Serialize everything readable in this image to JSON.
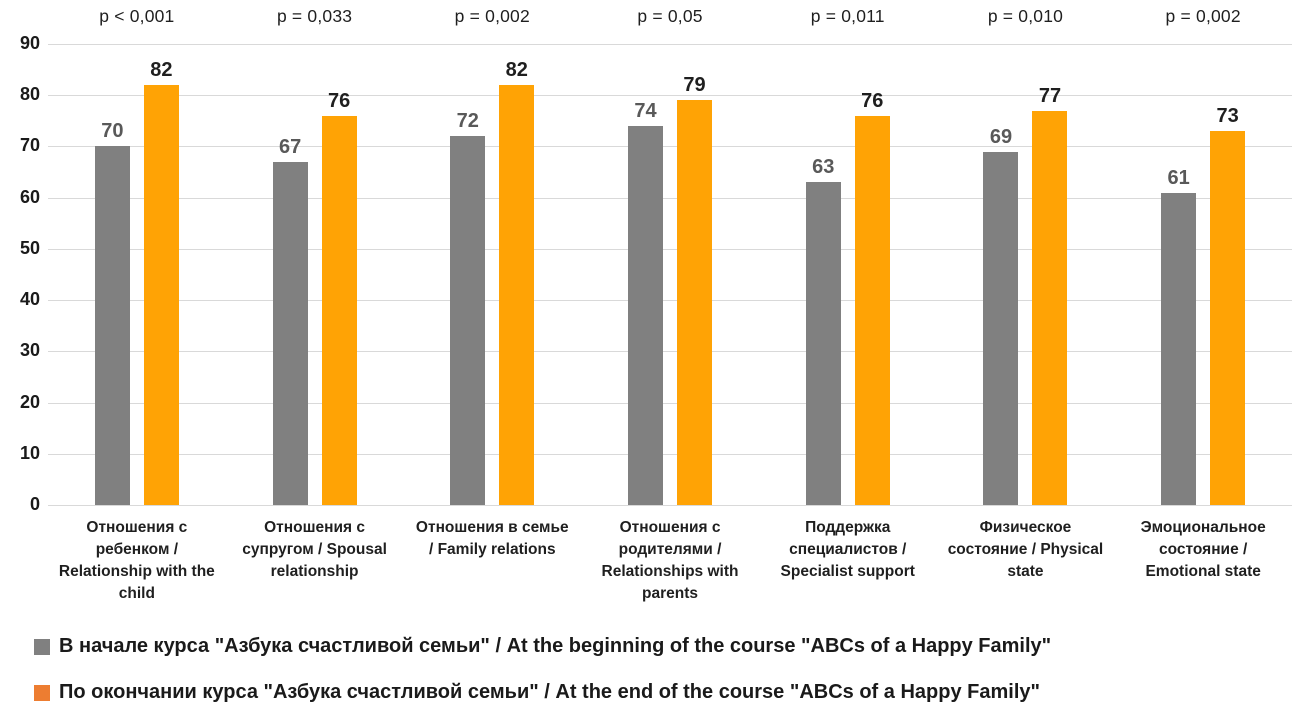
{
  "colors": {
    "bar_before": "#808080",
    "bar_after": "#ffa305",
    "legend_before": "#808080",
    "legend_after": "#ed7d31",
    "gridline": "#d9d9d9",
    "value_label_before": "#595959",
    "value_label_after": "#1f1f1f"
  },
  "chart_data": {
    "type": "bar",
    "title": "",
    "xlabel": "",
    "ylabel": "",
    "y_axis": {
      "min": 0,
      "max": 90,
      "step": 10,
      "ticks": [
        0,
        10,
        20,
        30,
        40,
        50,
        60,
        70,
        80,
        90
      ]
    },
    "grid": true,
    "legend_position": "bottom",
    "categories": [
      "Отношения с\nребенком /\nRelationship with the\nchild",
      "Отношения с\nсупругом / Spousal\nrelationship",
      "Отношения в семье\n/ Family relations",
      "Отношения с\nродителями /\nRelationships with\nparents",
      "Поддержка\nспециалистов /\nSpecialist support",
      "Физическое\nсостояние / Physical\nstate",
      "Эмоциональное\nсостояние /\nEmotional state"
    ],
    "p_values": [
      "p < 0,001",
      "p = 0,033",
      "p = 0,002",
      "p = 0,05",
      "p = 0,011",
      "p = 0,010",
      "p = 0,002"
    ],
    "series": [
      {
        "name": "В начале курса \"Азбука счастливой семьи\" / At the beginning of the course \"ABCs of a Happy Family\"",
        "values": [
          70,
          67,
          72,
          74,
          63,
          69,
          61
        ]
      },
      {
        "name": "По окончании курса \"Азбука счастливой семьи\" / At the end of the course \"ABCs of a Happy Family\"",
        "values": [
          82,
          76,
          82,
          79,
          76,
          77,
          73
        ]
      }
    ]
  },
  "legend": {
    "items": [
      {
        "label": "В начале курса \"Азбука счастливой семьи\" / At the beginning of the course \"ABCs of a Happy Family\""
      },
      {
        "label": "По окончании курса \"Азбука счастливой семьи\" / At the end of the course \"ABCs of a Happy Family\""
      }
    ]
  }
}
